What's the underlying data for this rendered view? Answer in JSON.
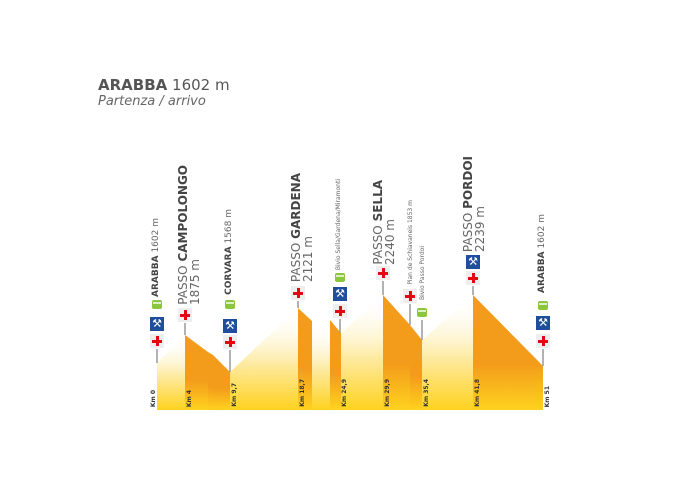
{
  "header": {
    "town": "ARABBA",
    "elevation": "1602 m",
    "subtitle": "Partenza / arrivo"
  },
  "colors": {
    "descent": "#f39c1b",
    "base": "#ffd21f",
    "cross": "#e30613",
    "wrench": "#1f4e9c",
    "bus": "#8cc63f"
  },
  "stations": [
    {
      "prefix": "",
      "name": "ARABBA",
      "elev": "1602 m",
      "km": "Km 0",
      "icons": [
        "bus-icon",
        "wrench-icon",
        "first-aid-icon"
      ]
    },
    {
      "prefix": "PASSO",
      "name": "CAMPOLONGO",
      "elev": "1875 m",
      "km": "Km 4",
      "icons": [
        "first-aid-icon"
      ]
    },
    {
      "prefix": "",
      "name": "CORVARA",
      "elev": "1568 m",
      "km": "Km 9,7",
      "icons": [
        "bus-icon",
        "wrench-icon",
        "first-aid-icon"
      ]
    },
    {
      "prefix": "PASSO",
      "name": "GARDENA",
      "elev": "2121 m",
      "km": "Km 18,7",
      "icons": [
        "first-aid-icon"
      ]
    },
    {
      "prefix": "",
      "name": "Bivio Sella/Gardena/Miramonti",
      "elev": "",
      "km": "Km 24,9",
      "icons": [
        "bus-icon",
        "wrench-icon",
        "first-aid-icon"
      ]
    },
    {
      "prefix": "PASSO",
      "name": "SELLA",
      "elev": "2240 m",
      "km": "Km 29,9",
      "icons": [
        "first-aid-icon"
      ]
    },
    {
      "prefix": "",
      "name": "Pian de Schiavaneis 1853 m",
      "elev": "",
      "km": "",
      "icons": [
        "first-aid-icon"
      ]
    },
    {
      "prefix": "",
      "name": "Bivio Passo Pordoi",
      "elev": "",
      "km": "Km 35,4",
      "icons": [
        "bus-icon"
      ]
    },
    {
      "prefix": "PASSO",
      "name": "PORDOI",
      "elev": "2239 m",
      "km": "Km 41,8",
      "icons": [
        "wrench-icon",
        "first-aid-icon"
      ]
    },
    {
      "prefix": "",
      "name": "ARABBA",
      "elev": "1602 m",
      "km": "Km 51",
      "icons": [
        "bus-icon",
        "wrench-icon",
        "first-aid-icon"
      ]
    }
  ]
}
